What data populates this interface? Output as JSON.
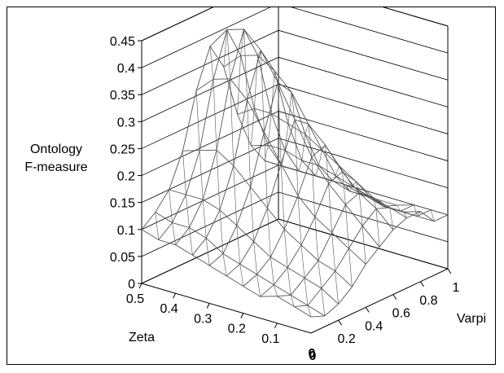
{
  "chart_data": {
    "type": "surface",
    "zlabel_lines": [
      "Ontology",
      "F-measure"
    ],
    "xlabel": "Zeta",
    "ylabel": "Varpi",
    "zlim": [
      0,
      0.45
    ],
    "z_ticks": [
      "0",
      "0.05",
      "0.1",
      "0.15",
      "0.2",
      "0.25",
      "0.3",
      "0.35",
      "0.4",
      "0.45"
    ],
    "zeta_ticks": [
      "0.5",
      "0.4",
      "0.3",
      "0.2",
      "0.1"
    ],
    "varpi_ticks": [
      "0.2",
      "0.4",
      "0.6",
      "0.8",
      "1"
    ],
    "origin_labels": [
      "0",
      "0"
    ],
    "zeta": [
      0,
      0.05,
      0.1,
      0.15,
      0.2,
      0.25,
      0.3,
      0.35,
      0.4,
      0.45,
      0.5
    ],
    "varpi": [
      0,
      0.1,
      0.2,
      0.3,
      0.4,
      0.5,
      0.6,
      0.7,
      0.8,
      0.9,
      1.0
    ],
    "z": [
      [
        0.03,
        0.02,
        0.03,
        0.05,
        0.08,
        0.1,
        0.12,
        0.13,
        0.13,
        0.1,
        0.1
      ],
      [
        0.04,
        0.03,
        0.05,
        0.07,
        0.1,
        0.13,
        0.15,
        0.14,
        0.12,
        0.1,
        0.1
      ],
      [
        0.05,
        0.04,
        0.06,
        0.08,
        0.12,
        0.16,
        0.17,
        0.15,
        0.12,
        0.1,
        0.1
      ],
      [
        0.04,
        0.05,
        0.07,
        0.1,
        0.14,
        0.19,
        0.2,
        0.17,
        0.13,
        0.1,
        0.09
      ],
      [
        0.05,
        0.06,
        0.08,
        0.12,
        0.17,
        0.23,
        0.24,
        0.19,
        0.14,
        0.11,
        0.09
      ],
      [
        0.06,
        0.07,
        0.1,
        0.15,
        0.22,
        0.29,
        0.27,
        0.21,
        0.15,
        0.11,
        0.09
      ],
      [
        0.07,
        0.08,
        0.12,
        0.18,
        0.27,
        0.35,
        0.32,
        0.23,
        0.16,
        0.12,
        0.1
      ],
      [
        0.08,
        0.1,
        0.14,
        0.21,
        0.32,
        0.4,
        0.35,
        0.24,
        0.16,
        0.12,
        0.1
      ],
      [
        0.09,
        0.11,
        0.15,
        0.23,
        0.35,
        0.43,
        0.37,
        0.25,
        0.17,
        0.12,
        0.1
      ],
      [
        0.09,
        0.11,
        0.15,
        0.22,
        0.34,
        0.42,
        0.36,
        0.25,
        0.17,
        0.12,
        0.1
      ],
      [
        0.1,
        0.12,
        0.15,
        0.21,
        0.31,
        0.38,
        0.33,
        0.23,
        0.16,
        0.12,
        0.1
      ]
    ],
    "grid": true,
    "mesh_color": "#555555",
    "axis_color": "#000000",
    "gridline_color": "#000000"
  }
}
